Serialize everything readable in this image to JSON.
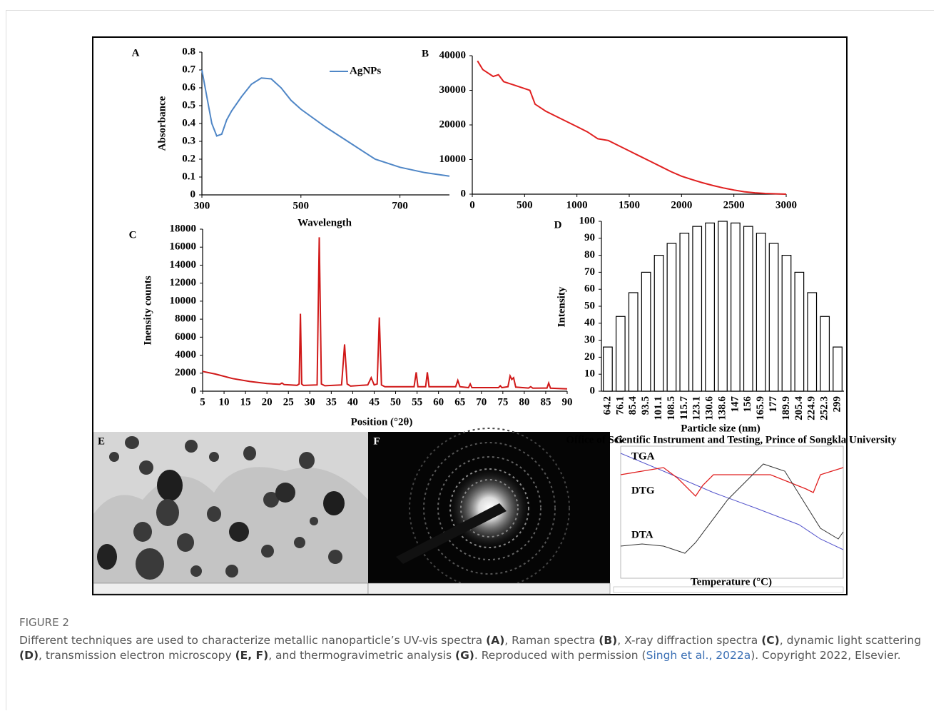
{
  "chart_data": [
    {
      "type": "line",
      "label": "A",
      "x_label": "Wavelength",
      "y_label": "Absorbance",
      "x": [
        300,
        310,
        320,
        330,
        340,
        350,
        360,
        380,
        400,
        420,
        440,
        460,
        480,
        500,
        550,
        600,
        650,
        700,
        750,
        800
      ],
      "series": [
        {
          "name": "AgNPs",
          "color": "#4f86c6",
          "values": [
            0.7,
            0.55,
            0.4,
            0.33,
            0.34,
            0.42,
            0.47,
            0.55,
            0.62,
            0.655,
            0.65,
            0.6,
            0.53,
            0.48,
            0.38,
            0.29,
            0.2,
            0.155,
            0.125,
            0.105
          ]
        }
      ],
      "xlim": [
        300,
        800
      ],
      "xticks": [
        300,
        500,
        700
      ],
      "ylim": [
        0,
        0.8
      ],
      "yticks": [
        0,
        0.1,
        0.2,
        0.3,
        0.4,
        0.5,
        0.6,
        0.7,
        0.8
      ]
    },
    {
      "type": "line",
      "label": "B",
      "color": "#e02020",
      "x": [
        50,
        100,
        200,
        250,
        300,
        400,
        500,
        550,
        600,
        700,
        800,
        900,
        1000,
        1100,
        1200,
        1300,
        1400,
        1500,
        1600,
        1700,
        1800,
        1900,
        2000,
        2100,
        2200,
        2300,
        2400,
        2500,
        2600,
        2700,
        2800,
        2900,
        3000
      ],
      "values": [
        38500,
        36000,
        34000,
        34500,
        32500,
        31500,
        30500,
        30000,
        26000,
        24000,
        22500,
        21000,
        19500,
        18000,
        16000,
        15500,
        14000,
        12500,
        11000,
        9500,
        8000,
        6500,
        5200,
        4200,
        3300,
        2500,
        1800,
        1200,
        700,
        400,
        200,
        100,
        0
      ],
      "xlim": [
        0,
        3000
      ],
      "xticks": [
        0,
        500,
        1000,
        1500,
        2000,
        2500,
        3000
      ],
      "ylim": [
        0,
        40000
      ],
      "yticks": [
        0,
        10000,
        20000,
        30000,
        40000
      ]
    },
    {
      "type": "line",
      "label": "C",
      "x_label": "Position (°2θ)",
      "y_label": "Inensity counts",
      "color": "#d01818",
      "x": [
        5,
        8,
        12,
        16,
        20,
        23,
        23.5,
        24,
        27,
        27.5,
        27.8,
        28.1,
        28.5,
        31.7,
        32.2,
        32.7,
        33.5,
        37.4,
        38.1,
        38.7,
        39.5,
        43.5,
        44.3,
        45,
        45.7,
        46.2,
        46.7,
        47.5,
        54.3,
        54.8,
        55.2,
        57,
        57.4,
        57.8,
        64,
        64.5,
        65,
        67,
        67.4,
        67.8,
        74,
        74.4,
        74.8,
        76.2,
        76.7,
        77.1,
        77.5,
        78,
        81,
        81.5,
        82,
        85.3,
        85.7,
        86.1,
        90
      ],
      "values": [
        2200,
        1900,
        1400,
        1080,
        850,
        760,
        900,
        740,
        650,
        800,
        8600,
        800,
        640,
        700,
        17100,
        800,
        600,
        700,
        5200,
        800,
        560,
        700,
        1500,
        700,
        800,
        8200,
        700,
        500,
        500,
        2100,
        500,
        500,
        2100,
        500,
        500,
        1200,
        500,
        400,
        800,
        400,
        400,
        600,
        400,
        500,
        1700,
        1300,
        1500,
        450,
        350,
        500,
        330,
        350,
        900,
        330,
        250
      ],
      "xlim": [
        5,
        90
      ],
      "xticks": [
        5,
        10,
        15,
        20,
        25,
        30,
        35,
        40,
        45,
        50,
        55,
        60,
        65,
        70,
        75,
        80,
        85,
        90
      ],
      "ylim": [
        0,
        18000
      ],
      "yticks": [
        0,
        2000,
        4000,
        6000,
        8000,
        10000,
        12000,
        14000,
        16000,
        18000
      ]
    },
    {
      "type": "bar",
      "label": "D",
      "x_label": "Particle size (nm)",
      "y_label": "Intensity",
      "categories": [
        "64.2",
        "76.1",
        "85.4",
        "93.5",
        "101.1",
        "108.5",
        "115.7",
        "123.1",
        "130.6",
        "138.6",
        "147",
        "156",
        "165.9",
        "177",
        "189.9",
        "205.4",
        "224.9",
        "252.3",
        "299"
      ],
      "values": [
        26,
        44,
        58,
        70,
        80,
        87,
        93,
        97,
        99,
        100,
        99,
        97,
        93,
        87,
        80,
        70,
        58,
        44,
        26
      ],
      "ylim": [
        0,
        100
      ],
      "yticks": [
        0,
        10,
        20,
        30,
        40,
        50,
        60,
        70,
        80,
        90,
        100
      ]
    }
  ],
  "images": [
    {
      "label": "E"
    },
    {
      "label": "F"
    },
    {
      "label": "G",
      "title": "Office of Scientific Instrument and Testing, Prince of Songkla University",
      "curve_labels": [
        "TGA",
        "DTG",
        "DTA"
      ],
      "x_label": "Temperature (°C)"
    }
  ],
  "caption": {
    "heading": "FIGURE 2",
    "parts": [
      "Different techniques are used to characterize metallic nanoparticle’s UV-vis spectra ",
      "(A)",
      ", Raman spectra ",
      "(B)",
      ", X-ray diffraction spectra ",
      "(C)",
      ", dynamic light scattering ",
      "(D)",
      ", transmission electron microscopy ",
      "(E, F)",
      ", and thermogravimetric analysis ",
      "(G)",
      ". Reproduced with permission (",
      "Singh et al., 2022a",
      "). Copyright 2022, Elsevier."
    ]
  }
}
